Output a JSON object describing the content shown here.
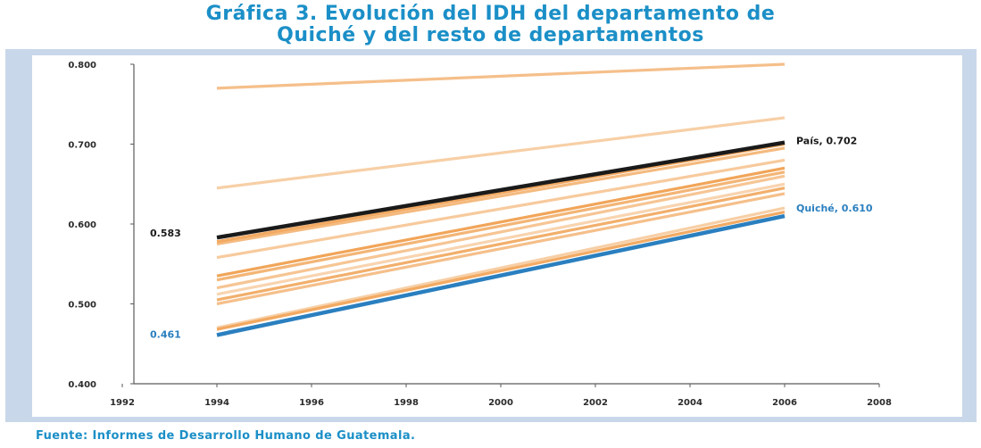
{
  "title_line1": "Gráfica 3. Evolución del IDH del departamento de",
  "title_line2": "Quiché y del resto de departamentos",
  "source": "Fuente: Informes de Desarrollo Humano de Guatemala.",
  "colors": {
    "others": "#f0a050",
    "pais": "#1a1a1a",
    "quiche": "#2a7fbf",
    "frame": "#c9d7ea"
  },
  "chart_data": {
    "type": "line",
    "title": "Gráfica 3. Evolución del IDH del departamento de Quiché y del resto de departamentos",
    "xlim": [
      1992,
      2008
    ],
    "ylim": [
      0.4,
      0.8
    ],
    "x_ticks": [
      "1992",
      "1994",
      "1996",
      "1998",
      "2000",
      "2002",
      "2004",
      "2006",
      "2008"
    ],
    "y_ticks": [
      "0.400",
      "0.500",
      "0.600",
      "0.700",
      "0.800"
    ],
    "grid": false,
    "legend": "none",
    "x": [
      1994,
      2006
    ],
    "series": [
      {
        "name": "País",
        "role": "pais",
        "values": [
          0.583,
          0.702
        ]
      },
      {
        "name": "Quiché",
        "role": "quiche",
        "values": [
          0.461,
          0.61
        ]
      },
      {
        "role": "other",
        "values": [
          0.77,
          0.8
        ]
      },
      {
        "role": "other",
        "values": [
          0.645,
          0.733
        ]
      },
      {
        "role": "other",
        "values": [
          0.578,
          0.7
        ]
      },
      {
        "role": "other",
        "values": [
          0.575,
          0.695
        ]
      },
      {
        "role": "other",
        "values": [
          0.558,
          0.68
        ]
      },
      {
        "role": "other",
        "values": [
          0.535,
          0.67
        ]
      },
      {
        "role": "other",
        "values": [
          0.53,
          0.665
        ]
      },
      {
        "role": "other",
        "values": [
          0.52,
          0.66
        ]
      },
      {
        "role": "other",
        "values": [
          0.512,
          0.65
        ]
      },
      {
        "role": "other",
        "values": [
          0.505,
          0.645
        ]
      },
      {
        "role": "other",
        "values": [
          0.5,
          0.638
        ]
      },
      {
        "role": "other",
        "values": [
          0.47,
          0.62
        ]
      },
      {
        "role": "other",
        "values": [
          0.468,
          0.615
        ]
      }
    ],
    "annotations": [
      {
        "text": "País, 0.702",
        "target": "pais-end"
      },
      {
        "text": "Quiché, 0.610",
        "target": "quiche-end"
      },
      {
        "text": "0.583",
        "target": "pais-start"
      },
      {
        "text": "0.461",
        "target": "quiche-start"
      }
    ]
  }
}
